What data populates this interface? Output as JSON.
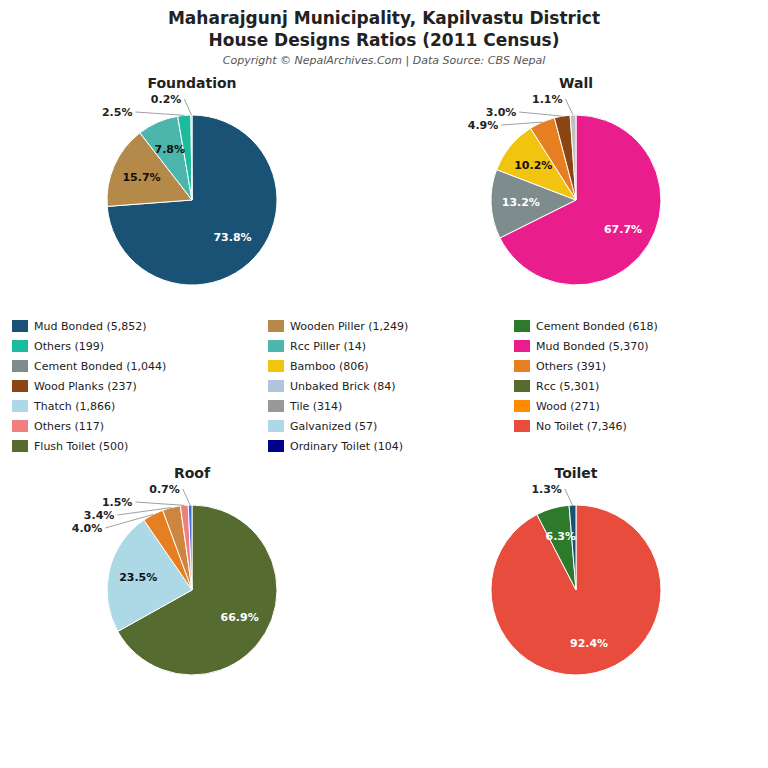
{
  "title": "Maharajgunj Municipality, Kapilvastu District",
  "subtitle": "House Designs Ratios (2011 Census)",
  "annotations": [
    "Copyright © NepalArchives.Com | Data Source: CBS Nepal"
  ],
  "legend": "center",
  "series": [
    {
      "name": "Mud Bonded (5,852)",
      "color": "#1a5276"
    },
    {
      "name": "Others (199)",
      "color": "#1abc9c"
    },
    {
      "name": "Cement Bonded (1,044)",
      "color": "#7f8c8d"
    },
    {
      "name": "Wood Planks (237)",
      "color": "#8b4513"
    },
    {
      "name": "Thatch (1,866)",
      "color": "#add8e6"
    },
    {
      "name": "Others (117)",
      "color": "#f08080"
    },
    {
      "name": "Flush Toilet (500)",
      "color": "#556b2f"
    },
    {
      "name": "Wooden Piller (1,249)",
      "color": "#b5894a"
    },
    {
      "name": "Rcc Piller (14)",
      "color": "#4db6ac"
    },
    {
      "name": "Bamboo (806)",
      "color": "#f1c40f"
    },
    {
      "name": "Unbaked Brick (84)",
      "color": "#b0c4de"
    },
    {
      "name": "Tile (314)",
      "color": "#999999"
    },
    {
      "name": "Galvanized (57)",
      "color": "#add8e6"
    },
    {
      "name": "Ordinary Toilet (104)",
      "color": "#00008b"
    },
    {
      "name": "Cement Bonded (618)",
      "color": "#2d7a2d"
    },
    {
      "name": "Mud Bonded (5,370)",
      "color": "#e91e8c"
    },
    {
      "name": "Others (391)",
      "color": "#e67e22"
    },
    {
      "name": "Rcc (5,301)",
      "color": "#556b2f"
    },
    {
      "name": "Wood (271)",
      "color": "#ff8c00"
    },
    {
      "name": "No Toilet (7,346)",
      "color": "#e74c3c"
    }
  ],
  "chart_data": [
    {
      "type": "pie",
      "title": "Foundation",
      "values": [
        73.8,
        15.7,
        7.8,
        2.5,
        0.2
      ],
      "value_labels": [
        "73.8%",
        "15.7%",
        "7.8%",
        "2.5%",
        "0.2%"
      ],
      "colors": [
        "#1a5276",
        "#b5894a",
        "#4db6ac",
        "#1abc9c",
        "#2ecc71"
      ],
      "data_labels": true
    },
    {
      "type": "pie",
      "title": "Wall",
      "values": [
        67.7,
        13.2,
        10.2,
        4.9,
        3.0,
        1.1
      ],
      "value_labels": [
        "67.7%",
        "13.2%",
        "10.2%",
        "4.9%",
        "3.0%",
        "1.1%"
      ],
      "colors": [
        "#e91e8c",
        "#7f8c8d",
        "#f1c40f",
        "#e67e22",
        "#8b4513",
        "#c0c0c0"
      ],
      "data_labels": true
    },
    {
      "type": "pie",
      "title": "Roof",
      "values": [
        66.9,
        23.5,
        4.0,
        3.4,
        1.5,
        0.7
      ],
      "value_labels": [
        "66.9%",
        "23.5%",
        "4.0%",
        "3.4%",
        "1.5%",
        "0.7%"
      ],
      "colors": [
        "#556b2f",
        "#add8e6",
        "#e67e22",
        "#cd853f",
        "#f08080",
        "#4169e1"
      ],
      "data_labels": true
    },
    {
      "type": "pie",
      "title": "Toilet",
      "values": [
        92.4,
        6.3,
        1.3
      ],
      "value_labels": [
        "92.4%",
        "6.3%",
        "1.3%"
      ],
      "colors": [
        "#e74c3c",
        "#2d7a2d",
        "#1a5276"
      ],
      "data_labels": true
    }
  ]
}
